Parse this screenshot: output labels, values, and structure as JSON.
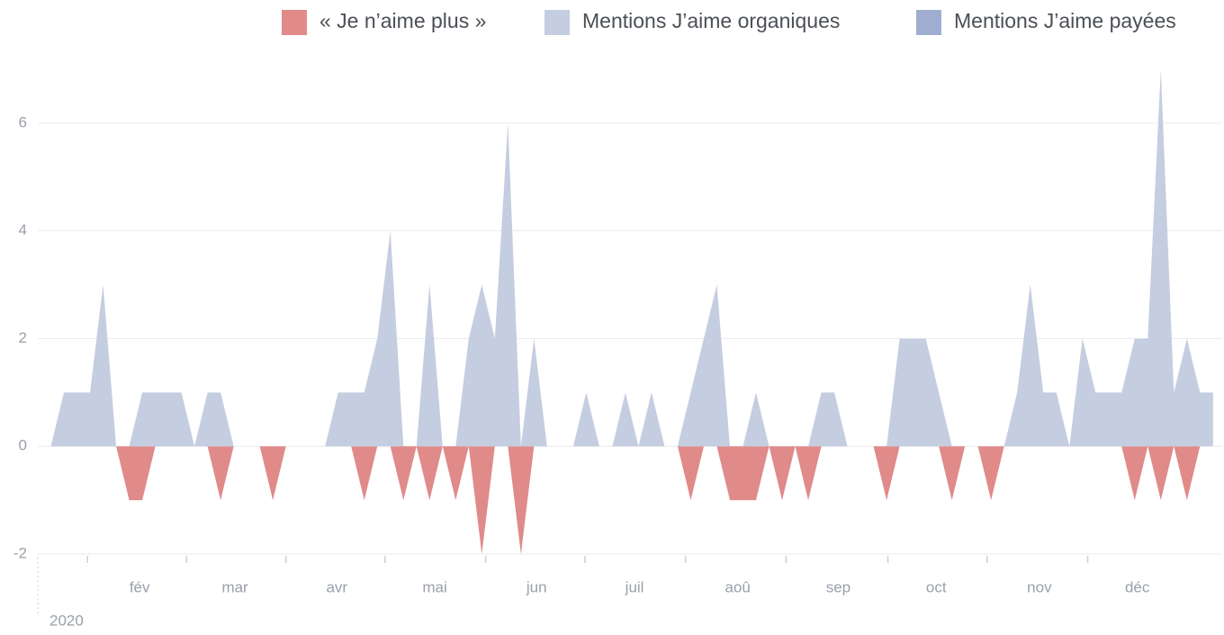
{
  "chart_data": {
    "type": "area",
    "series": [
      {
        "name": "« Je n’aime plus »",
        "color": "#e08a8a",
        "values": [
          0,
          0,
          0,
          0,
          0,
          0,
          -1,
          -1,
          0,
          0,
          0,
          0,
          0,
          -1,
          0,
          0,
          0,
          -1,
          0,
          0,
          0,
          0,
          0,
          0,
          -1,
          0,
          0,
          -1,
          0,
          -1,
          0,
          -1,
          0,
          -2,
          0,
          0,
          -2,
          0,
          0,
          0,
          0,
          0,
          0,
          0,
          0,
          0,
          0,
          0,
          0,
          -1,
          0,
          0,
          -1,
          -1,
          -1,
          0,
          -1,
          0,
          -1,
          0,
          0,
          0,
          0,
          0,
          -1,
          0,
          0,
          0,
          0,
          -1,
          0,
          0,
          -1,
          0,
          0,
          0,
          0,
          0,
          0,
          0,
          0,
          0,
          0,
          -1,
          0,
          -1,
          0,
          -1,
          0,
          0
        ]
      },
      {
        "name": "Mentions J’aime organiques",
        "color": "#c5cde0",
        "values": [
          0,
          1,
          1,
          1,
          3,
          0,
          0,
          1,
          1,
          1,
          1,
          0,
          1,
          1,
          0,
          0,
          0,
          0,
          0,
          0,
          0,
          0,
          1,
          1,
          1,
          2,
          4,
          0,
          0,
          3,
          0,
          0,
          2,
          3,
          2,
          6,
          0,
          2,
          0,
          0,
          0,
          1,
          0,
          0,
          1,
          0,
          1,
          0,
          0,
          1,
          2,
          3,
          0,
          0,
          1,
          0,
          0,
          0,
          0,
          1,
          1,
          0,
          0,
          0,
          0,
          2,
          2,
          2,
          1,
          0,
          0,
          0,
          0,
          0,
          1,
          3,
          1,
          1,
          0,
          2,
          1,
          1,
          1,
          2,
          2,
          7,
          1,
          2,
          1,
          1
        ]
      },
      {
        "name": "Mentions J’aime payées",
        "color": "#9fadd0",
        "values": [
          0,
          0,
          0,
          0,
          0,
          0,
          0,
          0,
          0,
          0,
          0,
          0,
          0,
          0,
          0,
          0,
          0,
          0,
          0,
          0,
          0,
          0,
          0,
          0,
          0,
          0,
          0,
          0,
          0,
          0,
          0,
          0,
          0,
          0,
          0,
          0,
          0,
          0,
          0,
          0,
          0,
          0,
          0,
          0,
          0,
          0,
          0,
          0,
          0,
          0,
          0,
          0,
          0,
          0,
          0,
          0,
          0,
          0,
          0,
          0,
          0,
          0,
          0,
          0,
          0,
          0,
          0,
          0,
          0,
          0,
          0,
          0,
          0,
          0,
          0,
          0,
          0,
          0,
          0,
          0,
          0,
          0,
          0,
          0,
          0,
          0,
          0,
          0,
          0,
          0
        ]
      }
    ],
    "xlim": [
      -1,
      89.7
    ],
    "xticks": [
      2.8,
      10.4,
      18,
      25.6,
      33.3,
      40.9,
      48.6,
      56.3,
      64.1,
      71.7,
      79.4
    ],
    "xtick_labels": [
      {
        "value": 6.8,
        "label": "fév"
      },
      {
        "value": 14.1,
        "label": "mar"
      },
      {
        "value": 21.9,
        "label": "avr"
      },
      {
        "value": 29.4,
        "label": "mai"
      },
      {
        "value": 37.2,
        "label": "jun"
      },
      {
        "value": 44.7,
        "label": "juil"
      },
      {
        "value": 52.6,
        "label": "aoû"
      },
      {
        "value": 60.3,
        "label": "sep"
      },
      {
        "value": 67.8,
        "label": "oct"
      },
      {
        "value": 75.7,
        "label": "nov"
      },
      {
        "value": 83.2,
        "label": "déc"
      }
    ],
    "year_label": "2020",
    "ylim": [
      -2,
      7
    ],
    "yticks": [
      -2,
      0,
      2,
      4,
      6
    ],
    "grid": true,
    "legend": "top-right"
  }
}
